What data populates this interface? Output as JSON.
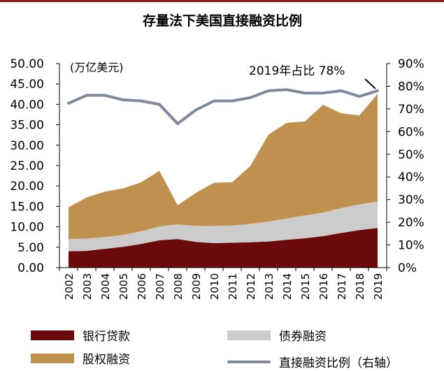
{
  "chart_data": {
    "type": "area",
    "title": "存量法下美国直接融资比例",
    "unit_label": "(万亿美元)",
    "annotation": "2019年占比 78%",
    "categories": [
      "2002",
      "2003",
      "2004",
      "2005",
      "2006",
      "2007",
      "2008",
      "2009",
      "2010",
      "2011",
      "2012",
      "2013",
      "2014",
      "2015",
      "2016",
      "2017",
      "2018",
      "2019"
    ],
    "series": [
      {
        "name": "银行贷款",
        "kind": "stacked-area",
        "color": "#6b0a0a",
        "values": [
          4.0,
          4.1,
          4.6,
          5.1,
          5.8,
          6.7,
          7.0,
          6.3,
          6.0,
          6.1,
          6.2,
          6.4,
          6.8,
          7.2,
          7.7,
          8.5,
          9.2,
          9.7
        ]
      },
      {
        "name": "债券融资",
        "kind": "stacked-area",
        "color": "#cccccc",
        "values": [
          3.0,
          3.0,
          2.9,
          2.9,
          3.1,
          3.4,
          3.6,
          3.9,
          4.2,
          4.2,
          4.5,
          4.9,
          5.2,
          5.6,
          5.8,
          6.1,
          6.3,
          6.5
        ]
      },
      {
        "name": "股权融资",
        "kind": "stacked-area",
        "color": "#c0914e",
        "values": [
          7.8,
          10.1,
          11.1,
          11.4,
          12.0,
          13.6,
          4.7,
          8.1,
          10.6,
          10.6,
          14.2,
          21.3,
          23.5,
          23.0,
          26.4,
          23.2,
          21.8,
          26.4
        ]
      },
      {
        "name": "直接融资比例（右轴）",
        "kind": "line",
        "axis": "right",
        "color": "#7f879a",
        "values": [
          72.5,
          76.0,
          76.0,
          74.0,
          73.5,
          72.0,
          63.5,
          69.5,
          73.5,
          73.5,
          75.0,
          78.0,
          78.5,
          77.0,
          77.0,
          78.0,
          75.5,
          78.0
        ]
      }
    ],
    "y_left": {
      "min": 0,
      "max": 50,
      "step": 5,
      "tick_labels": [
        "0.00",
        "5.00",
        "10.00",
        "15.00",
        "20.00",
        "25.00",
        "30.00",
        "35.00",
        "40.00",
        "45.00",
        "50.00"
      ]
    },
    "y_right": {
      "min": 0,
      "max": 90,
      "step": 10,
      "tick_labels": [
        "0%",
        "10%",
        "20%",
        "30%",
        "40%",
        "50%",
        "60%",
        "70%",
        "80%",
        "90%"
      ]
    }
  }
}
